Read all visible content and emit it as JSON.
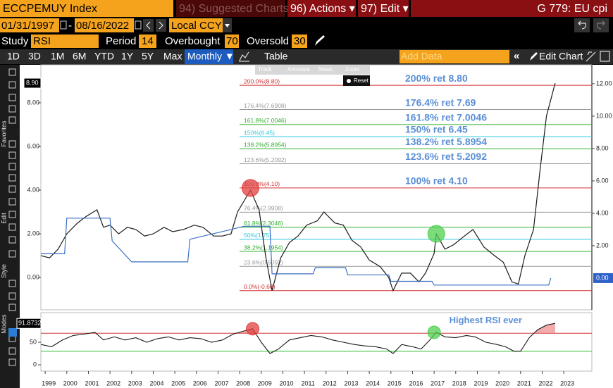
{
  "toolbar": {
    "ticker": "ECCPEMUY Index",
    "suggested": "94) Suggested Charts",
    "actions": "96) Actions ▾",
    "edit": "97) Edit ▾",
    "chart_id": "G 779: EU cpi"
  },
  "range": {
    "start": "01/31/1997",
    "separator": "-",
    "end": "08/16/2022",
    "currency": "Local CCY"
  },
  "study": {
    "label": "Study",
    "name": "RSI",
    "period_label": "Period",
    "period": 14,
    "overbought_label": "Overbought",
    "overbought": 70,
    "oversold_label": "Oversold",
    "oversold": 30
  },
  "tabs": [
    "1D",
    "3D",
    "1M",
    "6M",
    "YTD",
    "1Y",
    "5Y",
    "Max"
  ],
  "frequency": "Monthly ▼",
  "table": "Table",
  "add_data": "Add Data",
  "edit_chart": "Edit Chart",
  "sidebar": [
    "Favorites",
    "Edit",
    "Style",
    "Modes"
  ],
  "chart_tools": [
    "Track",
    "Annotate",
    "News",
    "Zoom"
  ],
  "reset": "Reset",
  "chart": {
    "type": "line",
    "xlim": [
      1998.8,
      2024.3
    ],
    "xticks": [
      1999,
      2000,
      2001,
      2002,
      2003,
      2004,
      2005,
      2006,
      2007,
      2008,
      2009,
      2010,
      2011,
      2012,
      2013,
      2014,
      2015,
      2016,
      2017,
      2018,
      2019,
      2020,
      2021,
      2022,
      2023
    ],
    "ylim": [
      -1.48,
      9.74
    ],
    "yticks": [
      {
        "value": 0,
        "label": "0.00"
      },
      {
        "value": 2,
        "label": "2.00"
      },
      {
        "value": 4,
        "label": "4.00"
      },
      {
        "value": 6,
        "label": "6.00"
      },
      {
        "value": 8,
        "label": "8.00"
      }
    ],
    "y2lim": [
      -1.96,
      13.17
    ],
    "y2ticks": [
      {
        "value": 2,
        "label": "2.00"
      },
      {
        "value": 4,
        "label": "4.00"
      },
      {
        "value": 6,
        "label": "6.00"
      },
      {
        "value": 8,
        "label": "8.00"
      },
      {
        "value": 10,
        "label": "10.00"
      },
      {
        "value": 12,
        "label": "12.00"
      }
    ],
    "series": [
      {
        "color": "#1a1a1a",
        "last_value": {
          "value": 8.9,
          "label": "8.90"
        },
        "x": [
          1998.8,
          1999.2,
          1999.6,
          2000.0,
          2000.5,
          2000.9,
          2001.4,
          2001.7,
          2002.0,
          2002.4,
          2002.8,
          2003.2,
          2003.6,
          2004.0,
          2004.5,
          2004.9,
          2005.4,
          2005.9,
          2006.3,
          2006.8,
          2007.2,
          2007.6,
          2007.9,
          2008.2,
          2008.5,
          2008.9,
          2009.2,
          2009.5,
          2009.9,
          2010.3,
          2010.7,
          2011.1,
          2011.6,
          2011.9,
          2012.4,
          2012.8,
          2013.2,
          2013.6,
          2014.0,
          2014.5,
          2014.9,
          2015.1,
          2015.5,
          2015.9,
          2016.3,
          2016.6,
          2017.0,
          2017.1,
          2017.5,
          2017.9,
          2018.4,
          2018.8,
          2019.3,
          2019.8,
          2020.2,
          2020.6,
          2020.9,
          2021.2,
          2021.6,
          2021.9,
          2022.2,
          2022.6
        ],
        "values": [
          1.0,
          0.9,
          1.3,
          2.0,
          2.5,
          2.8,
          3.1,
          2.3,
          2.4,
          2.0,
          2.3,
          2.2,
          1.9,
          2.0,
          2.3,
          2.1,
          2.2,
          2.4,
          2.3,
          1.9,
          1.9,
          2.0,
          3.0,
          3.5,
          4.0,
          3.1,
          1.0,
          -0.6,
          0.9,
          1.6,
          1.9,
          2.4,
          2.6,
          3.0,
          2.5,
          2.4,
          1.7,
          1.4,
          0.8,
          0.5,
          0.0,
          -0.6,
          0.2,
          0.2,
          -0.2,
          0.2,
          1.1,
          2.0,
          1.3,
          1.5,
          1.9,
          2.2,
          1.4,
          1.0,
          0.7,
          -0.2,
          -0.3,
          1.0,
          2.2,
          4.9,
          7.4,
          8.9
        ]
      },
      {
        "color": "#3a6fc4",
        "axis": "y2",
        "last_value": {
          "value": 0,
          "label": "0.00"
        },
        "x": [
          1998.8,
          1999.9,
          2000.0,
          2002.0,
          2002.1,
          2003.0,
          2005.6,
          2005.7,
          2007.6,
          2008.2,
          2009.4,
          2009.5,
          2011.4,
          2011.5,
          2012.9,
          2013.0,
          2014.9,
          2015.0,
          2016.9,
          2017.0,
          2022.3,
          2022.4
        ],
        "values": [
          1.5,
          1.5,
          3.7,
          3.7,
          2.3,
          1.0,
          1.0,
          2.4,
          3.0,
          3.2,
          3.2,
          0.26,
          0.26,
          0.65,
          0.65,
          0.2,
          0.2,
          -0.2,
          -0.2,
          -0.43,
          -0.43,
          0
        ]
      }
    ],
    "fib_levels": [
      {
        "value": 8.8,
        "label": "200.0%(8.80)",
        "color": "#d03030",
        "note": "200% ret 8.80"
      },
      {
        "value": 7.6908,
        "label": "176.4%(7.6908)",
        "color": "#9a9a9a",
        "note": "176.4% ret 7.69"
      },
      {
        "value": 7.0046,
        "label": "161.8%(7.0046)",
        "color": "#30b030",
        "note": "161.8% ret 7.0046"
      },
      {
        "value": 6.45,
        "label": "150%(6.45)",
        "color": "#30c8e0",
        "note": "150% ret 6.45"
      },
      {
        "value": 5.8954,
        "label": "138.2%(5.8954)",
        "color": "#30b030",
        "note": "138.2% ret 5.8954"
      },
      {
        "value": 5.2092,
        "label": "123.6%(5.2092)",
        "color": "#9a9a9a",
        "note": "123.6% ret 5.2092"
      },
      {
        "value": 4.1,
        "label": "100.0%(4.10)",
        "color": "#d03030",
        "note": "100% ret 4.10"
      },
      {
        "value": 2.9908,
        "label": "76.4%(2.9908)",
        "color": "#9a9a9a"
      },
      {
        "value": 2.3046,
        "label": "61.8%(2.3046)",
        "color": "#30b030"
      },
      {
        "value": 1.75,
        "label": "50%(1.75)",
        "color": "#30c8e0"
      },
      {
        "value": 1.1954,
        "label": "38.2%(1.1954)",
        "color": "#30b030"
      },
      {
        "value": 0.5092,
        "label": "23.6%(0.5092)",
        "color": "#9a9a9a"
      },
      {
        "value": -0.6,
        "label": "0.0%(-0.60)",
        "color": "#d03030"
      }
    ],
    "highlights": [
      {
        "x": 2008.5,
        "y": 4.1,
        "color": "#e04040"
      },
      {
        "x": 2017.1,
        "y": 2.0,
        "color": "#50d050"
      }
    ]
  },
  "rsi": {
    "type": "line",
    "color": "#1a1a1a",
    "ylim": [
      -14,
      111
    ],
    "yticks": [
      0,
      50
    ],
    "last_value": {
      "value": 91.8732,
      "label": "91.8732"
    },
    "x": [
      1998.8,
      1999.3,
      1999.8,
      2000.3,
      2000.8,
      2001.3,
      2001.7,
      2002.2,
      2002.7,
      2003.2,
      2003.7,
      2004.2,
      2004.7,
      2005.2,
      2005.7,
      2006.2,
      2006.7,
      2007.2,
      2007.7,
      2008.2,
      2008.6,
      2009.0,
      2009.4,
      2009.8,
      2010.3,
      2010.8,
      2011.3,
      2011.8,
      2012.3,
      2012.8,
      2013.3,
      2013.8,
      2014.3,
      2014.8,
      2015.1,
      2015.5,
      2016.0,
      2016.4,
      2016.8,
      2017.1,
      2017.5,
      2018.0,
      2018.5,
      2018.9,
      2019.4,
      2019.9,
      2020.3,
      2020.7,
      2021.0,
      2021.4,
      2021.8,
      2022.2,
      2022.6
    ],
    "values": [
      45,
      40,
      55,
      65,
      68,
      72,
      55,
      62,
      55,
      60,
      50,
      58,
      62,
      55,
      60,
      58,
      50,
      55,
      68,
      75,
      80,
      50,
      25,
      35,
      55,
      60,
      65,
      62,
      55,
      50,
      45,
      42,
      40,
      35,
      25,
      45,
      40,
      35,
      55,
      72,
      62,
      60,
      65,
      62,
      50,
      45,
      40,
      30,
      30,
      60,
      78,
      88,
      91.8732
    ],
    "overbought_color": "#d03030",
    "oversold_color": "#30c030",
    "annotation": {
      "text": "Highest RSI ever",
      "x": 2017.7,
      "y": 98
    },
    "highlights": [
      {
        "x": 2008.6,
        "y": 80,
        "color": "#e04040"
      },
      {
        "x": 2017.0,
        "y": 72,
        "color": "#50d050"
      }
    ]
  }
}
